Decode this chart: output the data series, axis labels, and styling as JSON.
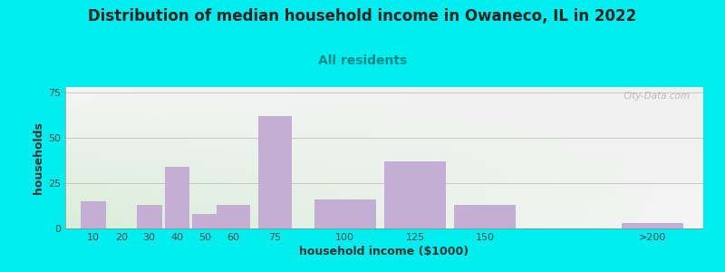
{
  "title": "Distribution of median household income in Owaneco, IL in 2022",
  "subtitle": "All residents",
  "xlabel": "household income ($1000)",
  "ylabel": "households",
  "bar_color": "#c4aed4",
  "background_color": "#00eeee",
  "categories": [
    "10",
    "20",
    "30",
    "40",
    "50",
    "60",
    "75",
    "100",
    "125",
    "150",
    ">200"
  ],
  "values": [
    15,
    0,
    13,
    34,
    8,
    13,
    62,
    16,
    37,
    13,
    3
  ],
  "bar_centers": [
    10,
    20,
    30,
    40,
    50,
    60,
    75,
    100,
    125,
    150,
    210
  ],
  "bar_widths": [
    9,
    9,
    9,
    9,
    9,
    12,
    12,
    22,
    22,
    22,
    22
  ],
  "ylim": [
    0,
    78
  ],
  "yticks": [
    0,
    25,
    50,
    75
  ],
  "xticks": [
    10,
    20,
    30,
    40,
    50,
    60,
    75,
    100,
    125,
    150,
    210
  ],
  "xticklabels": [
    "10",
    "20",
    "30",
    "40",
    "50",
    "60",
    "75",
    "100",
    "125",
    "150",
    ">200"
  ],
  "xlim": [
    0,
    228
  ],
  "title_fontsize": 12,
  "subtitle_fontsize": 10,
  "axis_label_fontsize": 9,
  "tick_fontsize": 8,
  "watermark_text": "City-Data.com",
  "grid_color": "#bbbbbb",
  "title_color": "#222222",
  "subtitle_color": "#008888",
  "axis_label_color": "#333333"
}
